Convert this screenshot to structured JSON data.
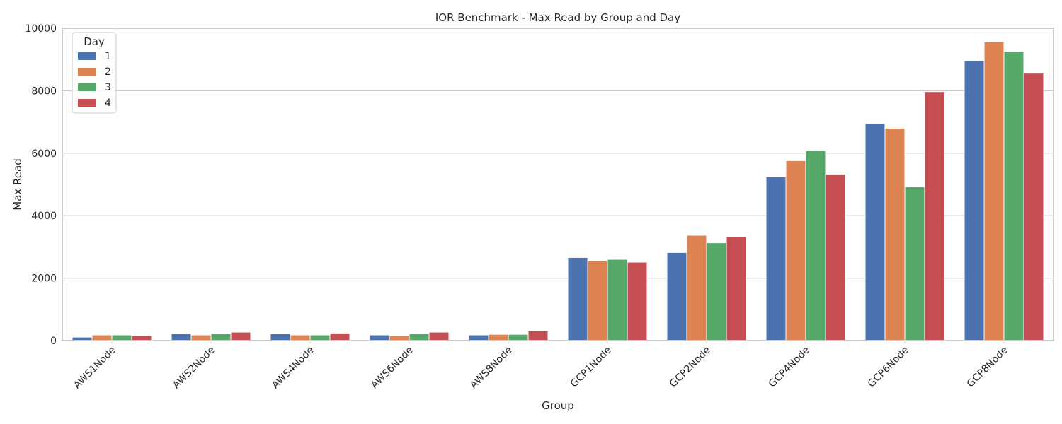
{
  "chart_data": {
    "type": "bar",
    "title": "IOR Benchmark - Max Read by Group and Day",
    "xlabel": "Group",
    "ylabel": "Max Read",
    "ylim": [
      0,
      10000
    ],
    "yticks": [
      "0",
      "2000",
      "4000",
      "6000",
      "8000",
      "10000"
    ],
    "grid": true,
    "legend": {
      "title": "Day",
      "placement": "top-left"
    },
    "categories": [
      "AWS1Node",
      "AWS2Node",
      "AWS4Node",
      "AWS6Node",
      "AWS8Node",
      "GCP1Node",
      "GCP2Node",
      "GCP4Node",
      "GCP6Node",
      "GCP8Node"
    ],
    "series": [
      {
        "name": "1",
        "color": "#4c72b0",
        "values": [
          110,
          220,
          220,
          180,
          180,
          2660,
          2820,
          5240,
          6940,
          8960
        ]
      },
      {
        "name": "2",
        "color": "#dd8452",
        "values": [
          180,
          180,
          180,
          160,
          200,
          2550,
          3370,
          5760,
          6800,
          9560
        ]
      },
      {
        "name": "3",
        "color": "#55a868",
        "values": [
          180,
          220,
          180,
          220,
          200,
          2600,
          3130,
          6080,
          4920,
          9260
        ]
      },
      {
        "name": "4",
        "color": "#c44e52",
        "values": [
          160,
          270,
          240,
          270,
          310,
          2510,
          3320,
          5330,
          7970,
          8560
        ]
      }
    ]
  }
}
